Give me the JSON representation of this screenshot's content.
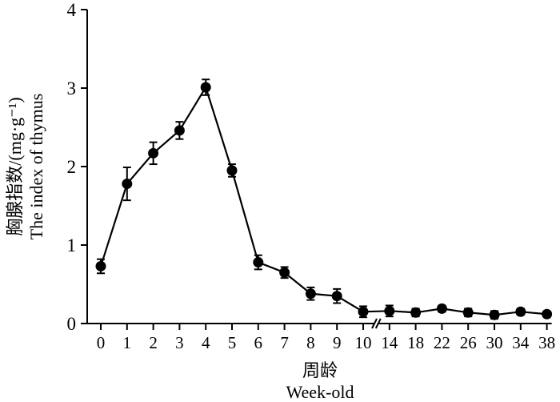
{
  "chart_data": {
    "type": "line",
    "title": "",
    "xlabel_cn": "周龄",
    "xlabel_en": "Week-old",
    "ylabel_cn": "胸腺指数/(mg·g⁻¹)",
    "ylabel_en": "The index of thymus",
    "ylim": [
      0,
      4
    ],
    "yticks": [
      "0",
      "1",
      "2",
      "3",
      "4"
    ],
    "x_axis_break": "between 10 and 14",
    "categories": [
      "0",
      "1",
      "2",
      "3",
      "4",
      "5",
      "6",
      "7",
      "8",
      "9",
      "10",
      "14",
      "18",
      "22",
      "26",
      "30",
      "34",
      "38"
    ],
    "series": [
      {
        "values": [
          0.73,
          1.78,
          2.17,
          2.46,
          3.01,
          1.95,
          0.78,
          0.65,
          0.38,
          0.35,
          0.15,
          0.16,
          0.14,
          0.19,
          0.14,
          0.11,
          0.15,
          0.12
        ],
        "errors": [
          0.09,
          0.21,
          0.14,
          0.11,
          0.1,
          0.08,
          0.09,
          0.07,
          0.08,
          0.09,
          0.07,
          0.07,
          0.05,
          0.04,
          0.05,
          0.05,
          0.04,
          0.03
        ],
        "color": "#000000",
        "marker": "filled-circle"
      }
    ]
  }
}
